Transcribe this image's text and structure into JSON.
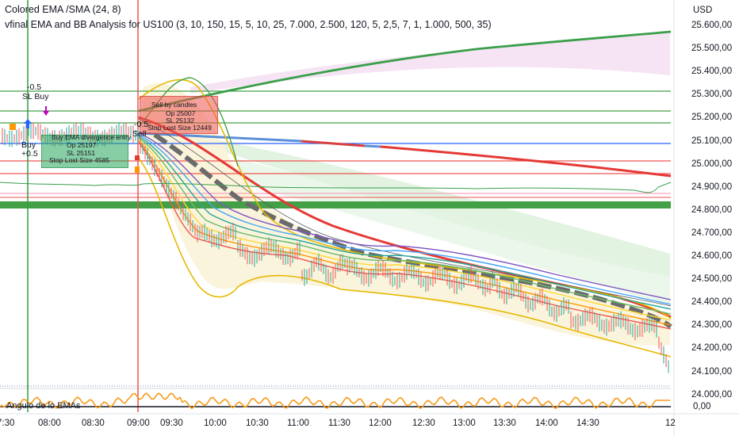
{
  "header": {
    "indicator1": "Colored EMA /SMA (24, 8)",
    "indicator2": "vfinal EMA and BB Analysis for US100 (3, 10, 150, 15, 5, 10, 25, 7.000, 2.500, 120, 5, 2,5, 7, 1, 1.000, 500, 35)"
  },
  "price_scale": {
    "currency": "USD",
    "ticks": [
      "25.600,00",
      "25.500,00",
      "25.400,00",
      "25.300,00",
      "25.200,00",
      "25.100,00",
      "25.000,00",
      "24.900,00",
      "24.800,00",
      "24.700,00",
      "24.600,00",
      "24.500,00",
      "24.400,00",
      "24.300,00",
      "24.200,00",
      "24.100,00",
      "24.000,00"
    ]
  },
  "time_axis": {
    "ticks": [
      "7:30",
      "08:00",
      "08:30",
      "09:00",
      "09:30",
      "10:00",
      "10:30",
      "11:00",
      "11:30",
      "12:00",
      "12:30",
      "13:00",
      "13:30",
      "14:00",
      "14:30",
      "12"
    ]
  },
  "annotations": {
    "sell_box": [
      "Sell  by candles",
      "Op 25007",
      "SL 25132",
      "Stop Lost Size 12449"
    ],
    "buy_box": [
      "Buy  EMA divergence entry",
      "Op 25197",
      "SL 25151",
      "Stop Lost Size 4585"
    ],
    "marker_minus": "-0.5",
    "marker_sl_buy": "SL Buy",
    "marker_buy": "Buy",
    "marker_plus": "+0.5",
    "marker_sell_minus": "-0.5",
    "marker_sell": "Sell"
  },
  "oscillator": {
    "label": "Angulo de lo EMAs",
    "value": "0,00"
  },
  "colors": {
    "ema_green": "#3a9f4a",
    "ema_red": "#e53935",
    "ema_blue": "#5b8fd8",
    "bb_yellow": "#e6b800",
    "fill_pink": "#f3d6ee",
    "fill_green": "#d8f0d8",
    "fill_yellow": "#fbf3d8",
    "osc_orange": "#f59b1b",
    "support_green": "#43a047",
    "vline_green": "#2e9e3e",
    "vline_red": "#ef5350"
  }
}
